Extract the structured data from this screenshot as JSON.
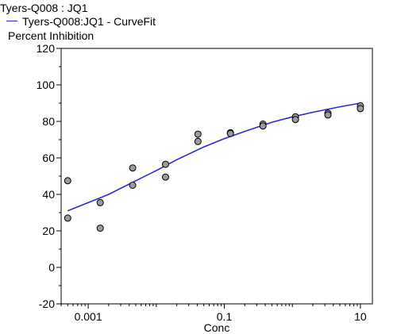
{
  "legend": {
    "scatter_label": "Tyers-Q008  : JQ1",
    "fit_label": "Tyers-Q008:JQ1 - CurveFit"
  },
  "chart_data": {
    "type": "scatter",
    "title": "",
    "xlabel": "Conc",
    "ylabel": "Percent Inhibition",
    "xscale": "log",
    "xlim": [
      0.0004,
      15
    ],
    "ylim": [
      -20,
      120
    ],
    "grid": false,
    "legend_position": "top-left",
    "x_ticks": [
      0.001,
      0.1,
      10
    ],
    "x_tick_labels": [
      "0.001",
      "0.1",
      "10"
    ],
    "y_ticks": [
      -20,
      0,
      20,
      40,
      60,
      80,
      100,
      120
    ],
    "y_tick_labels": [
      "-20",
      "0",
      "20",
      "40",
      "60",
      "80",
      "100",
      "120"
    ],
    "series": [
      {
        "name": "Tyers-Q008  : JQ1",
        "kind": "points",
        "color": "#9a9a9a",
        "points": [
          {
            "x": 0.0005,
            "y": 47.5
          },
          {
            "x": 0.0005,
            "y": 27
          },
          {
            "x": 0.0015,
            "y": 35.5
          },
          {
            "x": 0.0015,
            "y": 21.5
          },
          {
            "x": 0.0045,
            "y": 54.5
          },
          {
            "x": 0.0045,
            "y": 45
          },
          {
            "x": 0.0137,
            "y": 56.5
          },
          {
            "x": 0.0137,
            "y": 49.5
          },
          {
            "x": 0.041,
            "y": 73
          },
          {
            "x": 0.041,
            "y": 69
          },
          {
            "x": 0.123,
            "y": 73.8
          },
          {
            "x": 0.123,
            "y": 73.4
          },
          {
            "x": 0.37,
            "y": 78.5
          },
          {
            "x": 0.37,
            "y": 77.5
          },
          {
            "x": 1.11,
            "y": 82.5
          },
          {
            "x": 1.11,
            "y": 81
          },
          {
            "x": 3.33,
            "y": 84.5
          },
          {
            "x": 3.33,
            "y": 83.5
          },
          {
            "x": 10,
            "y": 88.5
          },
          {
            "x": 10,
            "y": 87
          }
        ]
      },
      {
        "name": "Tyers-Q008:JQ1 - CurveFit",
        "kind": "line",
        "color": "#2a2ad6",
        "points": [
          {
            "x": 0.0005,
            "y": 31
          },
          {
            "x": 0.001,
            "y": 35.5
          },
          {
            "x": 0.002,
            "y": 40
          },
          {
            "x": 0.005,
            "y": 47.5
          },
          {
            "x": 0.01,
            "y": 53
          },
          {
            "x": 0.02,
            "y": 59
          },
          {
            "x": 0.05,
            "y": 66
          },
          {
            "x": 0.1,
            "y": 70.5
          },
          {
            "x": 0.2,
            "y": 74.5
          },
          {
            "x": 0.5,
            "y": 79.5
          },
          {
            "x": 1,
            "y": 82.5
          },
          {
            "x": 2,
            "y": 85
          },
          {
            "x": 5,
            "y": 88
          },
          {
            "x": 10,
            "y": 90
          }
        ]
      }
    ]
  }
}
